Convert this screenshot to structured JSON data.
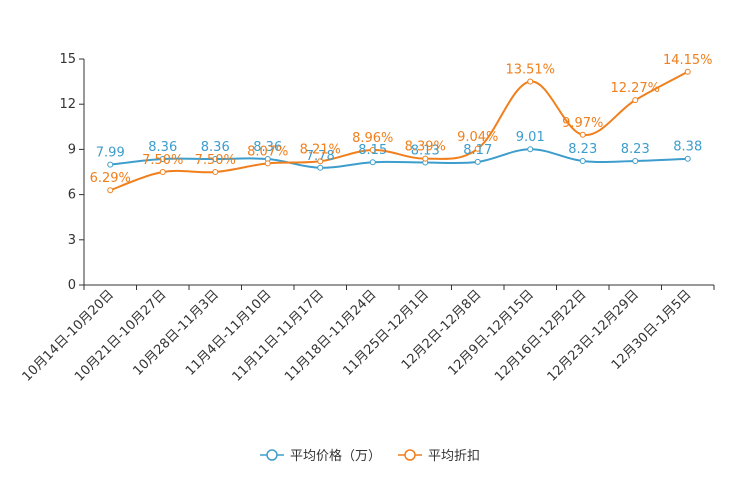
{
  "chart_data": {
    "type": "line",
    "categories": [
      "10月14日-10月20日",
      "10月21日-10月27日",
      "10月28日-11月3日",
      "11月4日-11月10日",
      "11月11日-11月17日",
      "11月18日-11月24日",
      "11月25日-12月1日",
      "12月2日-12月8日",
      "12月9日-12月15日",
      "12月16日-12月22日",
      "12月23日-12月29日",
      "12月30日-1月5日"
    ],
    "ylim": [
      0,
      15
    ],
    "yticks": [
      "0",
      "3",
      "6",
      "9",
      "12",
      "15"
    ],
    "series": [
      {
        "name": "平均价格（万）",
        "color": "#3d9dcc",
        "values": [
          7.99,
          8.36,
          8.36,
          8.36,
          7.78,
          8.15,
          8.13,
          8.17,
          9.01,
          8.23,
          8.23,
          8.38
        ],
        "labels": [
          "7.99",
          "8.36",
          "8.36",
          "8.36",
          "7.78",
          "8.15",
          "8.13",
          "8.17",
          "9.01",
          "8.23",
          "8.23",
          "8.38"
        ]
      },
      {
        "name": "平均折扣",
        "color": "#f07f1c",
        "values": [
          6.29,
          7.5,
          7.5,
          8.07,
          8.21,
          8.96,
          8.39,
          9.04,
          13.51,
          9.97,
          12.27,
          14.15
        ],
        "labels": [
          "6.29%",
          "7.50%",
          "7.50%",
          "8.07%",
          "8.21%",
          "8.96%",
          "8.39%",
          "9.04%",
          "13.51%",
          "9.97%",
          "12.27%",
          "14.15%"
        ]
      }
    ],
    "legend": {
      "position": "bottom-center"
    }
  }
}
